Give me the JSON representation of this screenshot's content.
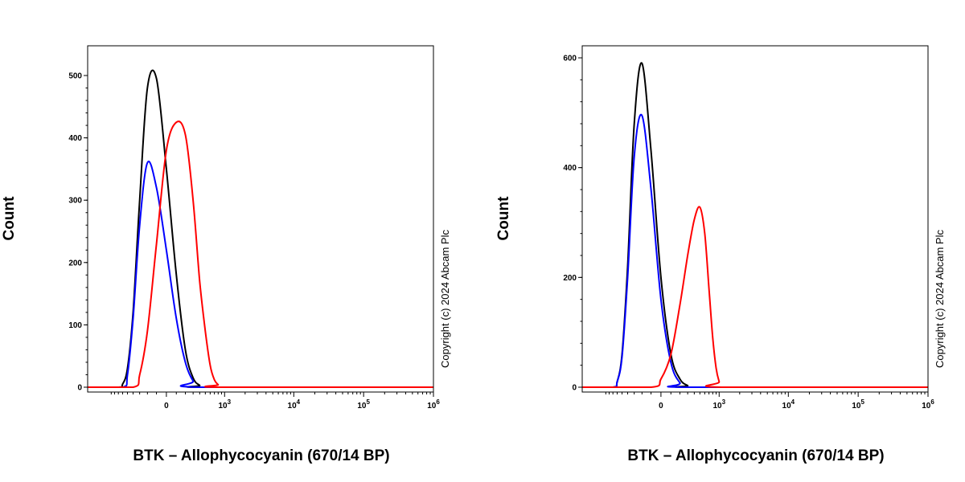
{
  "chart_data": [
    {
      "type": "line",
      "title": "",
      "xlabel": "BTK – Allophycocyanin (670/14 BP)",
      "ylabel": "Count",
      "copyright": "Copyright (c) 2024 Abcam Plc",
      "xscale": "biexponential",
      "ylim": [
        0,
        550
      ],
      "yticks": [
        0,
        100,
        200,
        300,
        400,
        500
      ],
      "xticks": [
        {
          "base": "0",
          "exp": ""
        },
        {
          "base": "10",
          "exp": "3"
        },
        {
          "base": "10",
          "exp": "4"
        },
        {
          "base": "10",
          "exp": "5"
        },
        {
          "base": "10",
          "exp": "6"
        }
      ],
      "series": [
        {
          "name": "black",
          "color": "#000000",
          "x": [
            -700,
            -600,
            -500,
            -400,
            -300,
            -200,
            -100,
            0,
            100,
            200,
            300,
            400,
            500
          ],
          "y": [
            0,
            5,
            30,
            120,
            300,
            480,
            495,
            350,
            180,
            60,
            15,
            3,
            0
          ]
        },
        {
          "name": "blue",
          "color": "#0000ff",
          "x": [
            -600,
            -500,
            -400,
            -300,
            -200,
            -100,
            0,
            100,
            200,
            300,
            400
          ],
          "y": [
            0,
            20,
            110,
            260,
            360,
            320,
            220,
            110,
            40,
            10,
            0
          ]
        },
        {
          "name": "red",
          "color": "#ff0000",
          "x": [
            -400,
            -300,
            -200,
            -100,
            0,
            100,
            200,
            300,
            400,
            500,
            600,
            700,
            800,
            900
          ],
          "y": [
            0,
            20,
            90,
            230,
            380,
            425,
            405,
            300,
            170,
            90,
            35,
            12,
            4,
            0
          ]
        }
      ]
    },
    {
      "type": "line",
      "title": "",
      "xlabel": "BTK – Allophycocyanin (670/14 BP)",
      "ylabel": "Count",
      "copyright": "Copyright (c) 2024 Abcam Plc",
      "xscale": "biexponential",
      "ylim": [
        0,
        600
      ],
      "yticks": [
        0,
        200,
        400,
        600
      ],
      "xticks": [
        {
          "base": "0",
          "exp": ""
        },
        {
          "base": "10",
          "exp": "3"
        },
        {
          "base": "10",
          "exp": "4"
        },
        {
          "base": "10",
          "exp": "5"
        },
        {
          "base": "10",
          "exp": "6"
        }
      ],
      "series": [
        {
          "name": "black",
          "color": "#000000",
          "x": [
            -700,
            -600,
            -500,
            -400,
            -300,
            -200,
            -100,
            0,
            100,
            200,
            300,
            400
          ],
          "y": [
            0,
            10,
            60,
            220,
            480,
            590,
            430,
            200,
            60,
            15,
            3,
            0
          ]
        },
        {
          "name": "blue",
          "color": "#0000ff",
          "x": [
            -700,
            -600,
            -500,
            -400,
            -300,
            -200,
            -100,
            0,
            100,
            200,
            300
          ],
          "y": [
            0,
            10,
            55,
            200,
            420,
            495,
            360,
            160,
            45,
            8,
            0
          ]
        },
        {
          "name": "red",
          "color": "#ff0000",
          "x": [
            -100,
            0,
            100,
            200,
            300,
            400,
            500,
            600,
            700,
            800,
            900,
            1000,
            1100
          ],
          "y": [
            0,
            15,
            60,
            150,
            240,
            305,
            328,
            280,
            180,
            90,
            35,
            10,
            0
          ]
        }
      ]
    }
  ]
}
